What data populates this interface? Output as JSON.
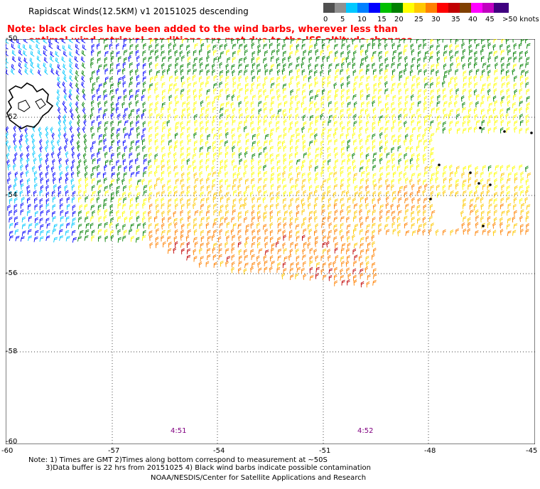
{
  "title": "Rapidscat Winds(12.5KM) v1 20151025 descending",
  "note_line1": "Note: black circles have been added to the wind barbs, wherever less than",
  "note_line2": "optimal wind retrieval conditions are met due to the ISS altitude changes.",
  "legend": {
    "colors": [
      "#505050",
      "#909090",
      "#00c8ff",
      "#0080ff",
      "#0000ff",
      "#00c000",
      "#008000",
      "#ffff00",
      "#ffc800",
      "#ff8000",
      "#ff0000",
      "#c00000",
      "#804000",
      "#ff00ff",
      "#c000c0",
      "#400080"
    ],
    "labels": [
      "0",
      "5",
      "10",
      "15",
      "20",
      "25",
      "30",
      "35",
      "40",
      "45",
      ">50 knots"
    ]
  },
  "lat_labels": [
    "-50",
    "-52",
    "-54",
    "-56",
    "-58",
    "-60"
  ],
  "lon_labels": [
    "-60",
    "-57",
    "-54",
    "-51",
    "-48",
    "-45"
  ],
  "time_labels": [
    "4:51",
    "4:52"
  ],
  "footer": {
    "line1": "Note: 1) Times are GMT 2)Times along bottom correspond to measurement at ~50S",
    "line2": "3)Data buffer is 22 hrs from 20151025 4) Black wind barbs indicate possible contamination",
    "credit": "NOAA/NESDIS/Center for Satellite Applications and Research"
  }
}
